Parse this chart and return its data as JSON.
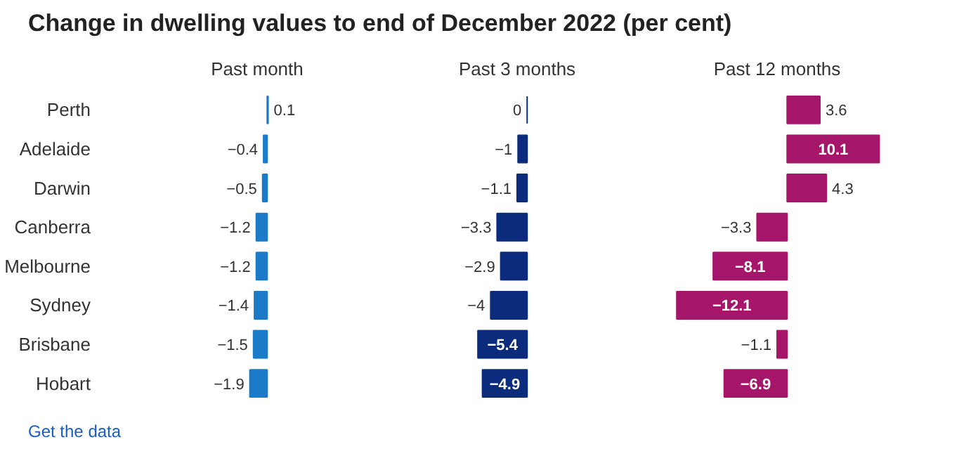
{
  "chart_data": [
    {
      "type": "bar",
      "orientation": "horizontal",
      "title": "Change in dwelling values to end of December 2022 (per cent)",
      "subtitle": "Past month",
      "categories": [
        "Perth",
        "Adelaide",
        "Darwin",
        "Canberra",
        "Melbourne",
        "Sydney",
        "Brisbane",
        "Hobart"
      ],
      "values": [
        0.1,
        -0.4,
        -0.5,
        -1.2,
        -1.2,
        -1.4,
        -1.5,
        -1.9
      ],
      "color": "#1b7bc9",
      "data_labels": true,
      "annotations": [
        "Get the data"
      ]
    },
    {
      "type": "bar",
      "orientation": "horizontal",
      "subtitle": "Past 3 months",
      "categories": [
        null,
        null,
        null,
        null,
        null,
        null,
        null,
        null
      ],
      "values": [
        0,
        -1,
        -1.1,
        -3.3,
        -2.9,
        -4,
        -5.4,
        -4.9
      ],
      "color": "#0b2c7c",
      "data_labels": true
    },
    {
      "type": "bar",
      "orientation": "horizontal",
      "subtitle": "Past 12 months",
      "categories": [
        null,
        null,
        null,
        null,
        null,
        null,
        null,
        null
      ],
      "values": [
        3.6,
        10.1,
        4.3,
        -3.3,
        -8.1,
        -12.1,
        -1.1,
        -6.9
      ],
      "color": "#a5166b",
      "data_labels": true
    }
  ]
}
